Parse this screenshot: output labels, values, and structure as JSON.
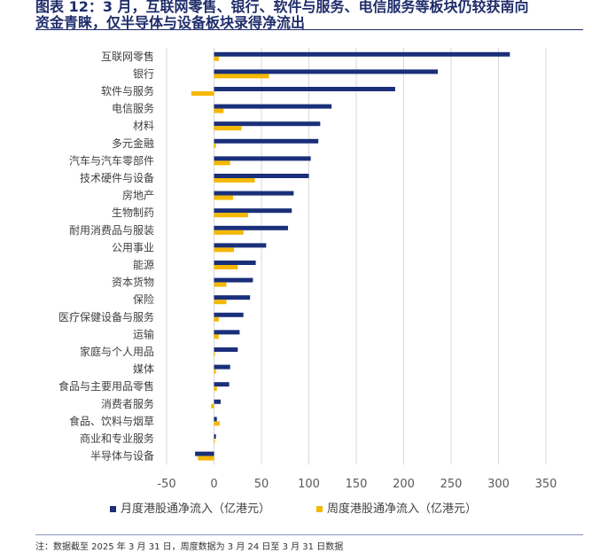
{
  "title_lines": [
    "图表 12：3 月，互联网零售、银行、软件与服务、电信服务等板块仍较获南向",
    "资金青睐，仅半导体与设备板块录得净流出"
  ],
  "footnote": "注：数据截至 2025 年 3 月 31 日，周度数据为 3 月 24 日至 3 月 31 日数据",
  "colors": {
    "monthly": "#1a2f7a",
    "weekly": "#f5b800",
    "grid": "#d9d9d9"
  },
  "chart_data": {
    "type": "bar",
    "orientation": "horizontal",
    "categories": [
      "互联网零售",
      "银行",
      "软件与服务",
      "电信服务",
      "材料",
      "多元金融",
      "汽车与汽车零部件",
      "技术硬件与设备",
      "房地产",
      "生物制药",
      "耐用消费品与服装",
      "公用事业",
      "能源",
      "资本货物",
      "保险",
      "医疗保健设备与服务",
      "运输",
      "家庭与个人用品",
      "媒体",
      "食品与主要用品零售",
      "消费者服务",
      "食品、饮料与烟草",
      "商业和专业服务",
      "半导体与设备"
    ],
    "series": [
      {
        "name": "月度港股通净流入（亿港元）",
        "values": [
          312,
          236,
          191,
          124,
          112,
          110,
          102,
          100,
          84,
          82,
          78,
          55,
          44,
          41,
          38,
          31,
          27,
          25,
          17,
          16,
          7,
          3,
          2,
          -20
        ]
      },
      {
        "name": "周度港股通净流入（亿港元）",
        "values": [
          5,
          58,
          -24,
          10,
          29,
          2,
          17,
          43,
          20,
          36,
          31,
          21,
          25,
          13,
          13,
          5,
          5,
          1,
          2,
          3,
          -3,
          6,
          0,
          -17
        ]
      }
    ],
    "x_ticks": [
      -50,
      0,
      50,
      100,
      150,
      200,
      250,
      300,
      350
    ],
    "xlim": [
      -50,
      350
    ],
    "grid": "vertical",
    "legend_position": "bottom"
  }
}
